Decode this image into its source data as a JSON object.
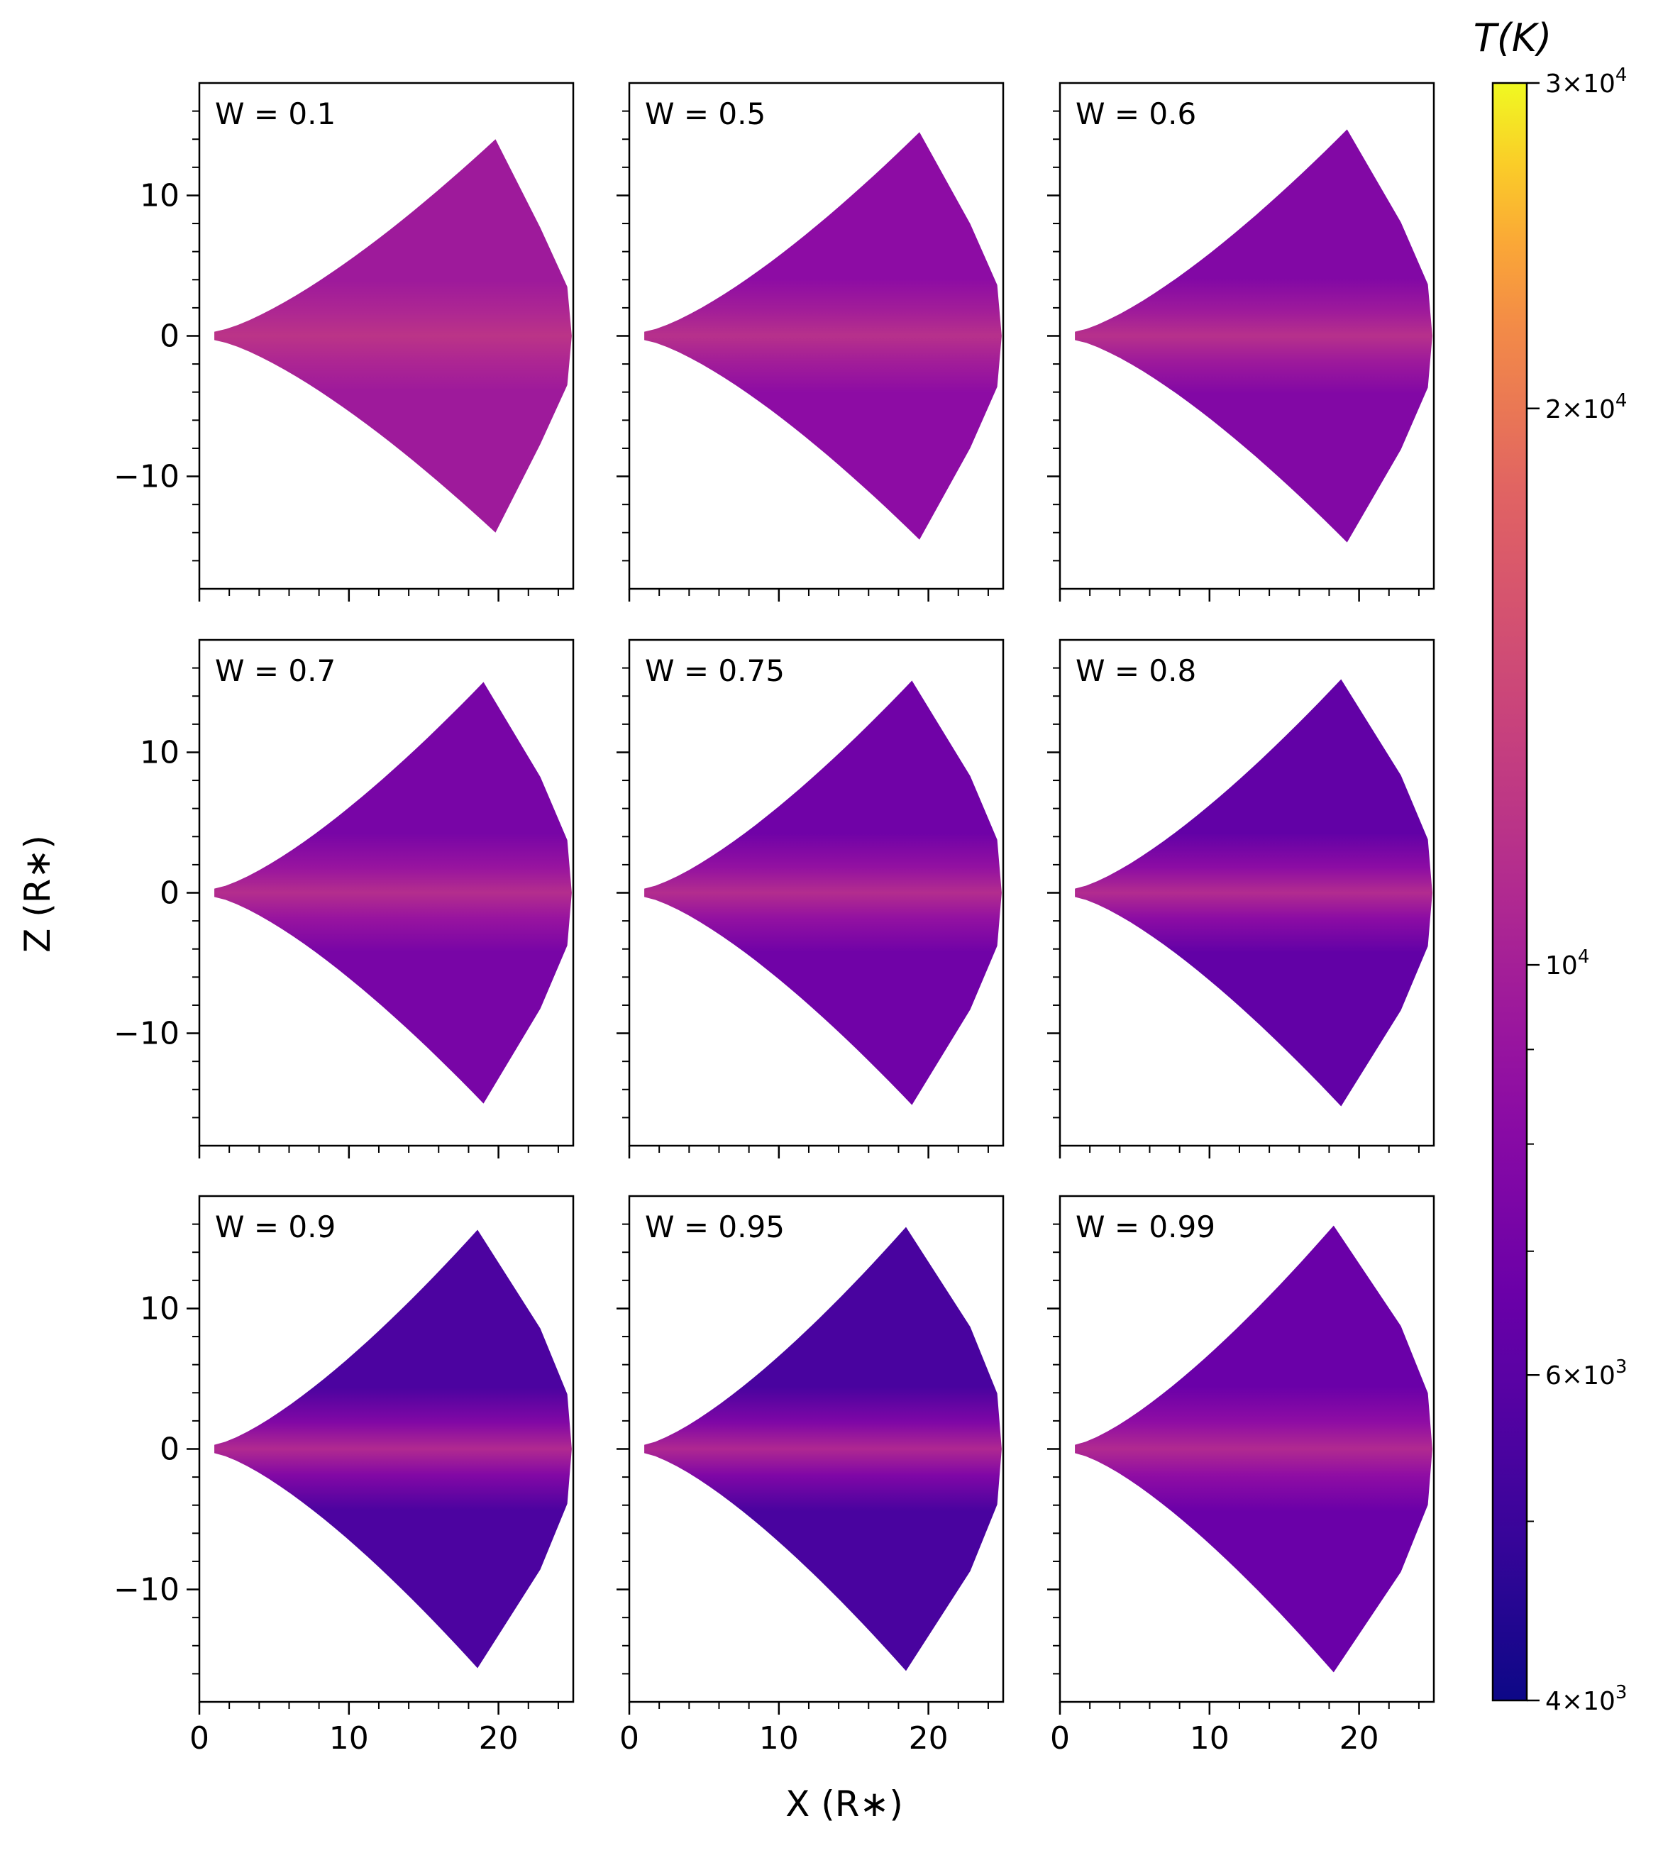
{
  "chart_data": {
    "type": "heatmap",
    "xlabel": "X (R∗)",
    "ylabel": "Z (R∗)",
    "xlim": [
      0,
      25
    ],
    "ylim": [
      -18,
      18
    ],
    "x_ticks": [
      0,
      10,
      20
    ],
    "x_tick_labels": [
      "0",
      "10",
      "20"
    ],
    "y_ticks": [
      10,
      0,
      -10
    ],
    "y_tick_labels": [
      "10",
      "0",
      "−10"
    ],
    "grid": false,
    "colorbar": {
      "title": "T(K)",
      "scale": "log",
      "colormap": "plasma",
      "range": [
        4000,
        30000
      ],
      "tick_labels": [
        {
          "value": 30000,
          "mantissa": "3",
          "exponent": "4"
        },
        {
          "value": 20000,
          "mantissa": "2",
          "exponent": "4"
        },
        {
          "value": 10000,
          "mantissa": "",
          "exponent": "4"
        },
        {
          "value": 6000,
          "mantissa": "6",
          "exponent": "3"
        },
        {
          "value": 4000,
          "mantissa": "4",
          "exponent": "3"
        }
      ],
      "minor_ticks": [
        5000,
        7000,
        8000,
        9000
      ]
    },
    "panels": [
      {
        "label": "W = 0.1",
        "W": 0.1,
        "outer_T": 9500,
        "plane_T": 12000,
        "outer_x": 19.8,
        "half_height": 14.0
      },
      {
        "label": "W = 0.5",
        "W": 0.5,
        "outer_T": 8400,
        "plane_T": 11600,
        "outer_x": 19.4,
        "half_height": 14.5
      },
      {
        "label": "W = 0.6",
        "W": 0.6,
        "outer_T": 7800,
        "plane_T": 11600,
        "outer_x": 19.2,
        "half_height": 14.7
      },
      {
        "label": "W = 0.7",
        "W": 0.7,
        "outer_T": 7300,
        "plane_T": 11300,
        "outer_x": 19.0,
        "half_height": 15.0
      },
      {
        "label": "W = 0.75",
        "W": 0.75,
        "outer_T": 6900,
        "plane_T": 11200,
        "outer_x": 18.9,
        "half_height": 15.1
      },
      {
        "label": "W = 0.8",
        "W": 0.8,
        "outer_T": 6300,
        "plane_T": 11100,
        "outer_x": 18.8,
        "half_height": 15.2
      },
      {
        "label": "W = 0.9",
        "W": 0.9,
        "outer_T": 5500,
        "plane_T": 11000,
        "outer_x": 18.6,
        "half_height": 15.6
      },
      {
        "label": "W = 0.95",
        "W": 0.95,
        "outer_T": 5400,
        "plane_T": 10800,
        "outer_x": 18.5,
        "half_height": 15.8
      },
      {
        "label": "W = 0.99",
        "W": 0.99,
        "outer_T": 6600,
        "plane_T": 11000,
        "outer_x": 18.3,
        "half_height": 15.9
      }
    ]
  }
}
